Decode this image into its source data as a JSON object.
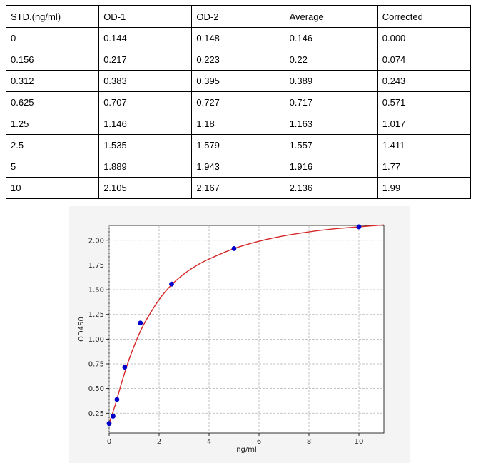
{
  "table": {
    "headers": [
      "STD.(ng/ml)",
      "OD-1",
      "OD-2",
      "Average",
      "Corrected"
    ],
    "rows": [
      [
        "0",
        "0.144",
        "0.148",
        "0.146",
        "0.000"
      ],
      [
        "0.156",
        "0.217",
        "0.223",
        "0.22",
        "0.074"
      ],
      [
        "0.312",
        "0.383",
        "0.395",
        "0.389",
        "0.243"
      ],
      [
        "0.625",
        "0.707",
        "0.727",
        "0.717",
        "0.571"
      ],
      [
        "1.25",
        "1.146",
        "1.18",
        "1.163",
        "1.017"
      ],
      [
        "2.5",
        "1.535",
        "1.579",
        "1.557",
        "1.411"
      ],
      [
        "5",
        "1.889",
        "1.943",
        "1.916",
        "1.77"
      ],
      [
        "10",
        "2.105",
        "2.167",
        "2.136",
        "1.99"
      ]
    ]
  },
  "chart_data": {
    "type": "scatter",
    "title": "",
    "xlabel": "ng/ml",
    "ylabel": "OD450",
    "xlim": [
      0,
      11
    ],
    "ylim": [
      0.05,
      2.15
    ],
    "grid": true,
    "xticks": [
      0,
      2,
      4,
      6,
      8,
      10
    ],
    "yticks": [
      0.25,
      0.5,
      0.75,
      1.0,
      1.25,
      1.5,
      1.75,
      2.0
    ],
    "ytick_labels": [
      "0.25",
      "0.50",
      "0.75",
      "1.00",
      "1.25",
      "1.50",
      "1.75",
      "2.00"
    ],
    "series": [
      {
        "x": [
          0,
          0.156,
          0.312,
          0.625,
          1.25,
          2.5,
          5,
          10
        ],
        "y": [
          0.146,
          0.22,
          0.389,
          0.717,
          1.163,
          1.557,
          1.916,
          2.136
        ],
        "color": "#0000cc"
      }
    ],
    "fit_curve": {
      "color": "#d62728",
      "x": [
        0,
        0.25,
        0.5,
        0.75,
        1,
        1.25,
        1.5,
        2,
        2.5,
        3,
        3.5,
        4,
        5,
        6,
        7,
        8,
        9,
        10,
        11
      ],
      "y": [
        0.146,
        0.34,
        0.56,
        0.76,
        0.93,
        1.08,
        1.2,
        1.4,
        1.55,
        1.66,
        1.745,
        1.81,
        1.916,
        1.99,
        2.045,
        2.085,
        2.115,
        2.136,
        2.155
      ]
    }
  }
}
